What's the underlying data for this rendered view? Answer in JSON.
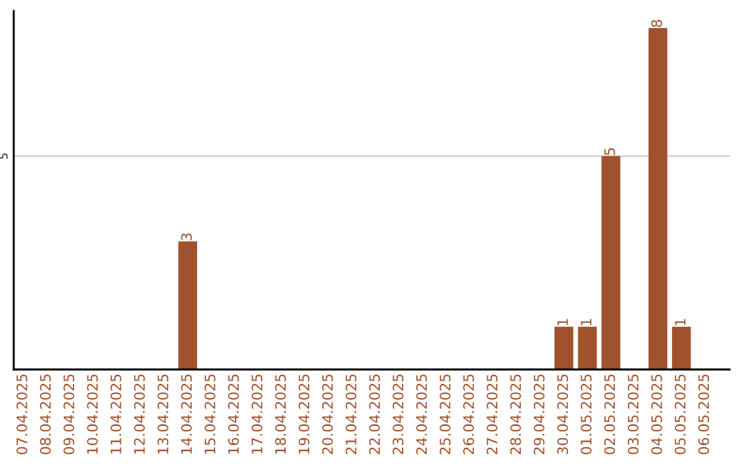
{
  "chart_data": {
    "type": "bar",
    "categories": [
      "07.04.2025",
      "08.04.2025",
      "09.04.2025",
      "10.04.2025",
      "11.04.2025",
      "12.04.2025",
      "13.04.2025",
      "14.04.2025",
      "15.04.2025",
      "16.04.2025",
      "17.04.2025",
      "18.04.2025",
      "19.04.2025",
      "20.04.2025",
      "21.04.2025",
      "22.04.2025",
      "23.04.2025",
      "24.04.2025",
      "25.04.2025",
      "26.04.2025",
      "27.04.2025",
      "28.04.2025",
      "29.04.2025",
      "30.04.2025",
      "01.05.2025",
      "02.05.2025",
      "03.05.2025",
      "04.05.2025",
      "05.05.2025",
      "06.05.2025"
    ],
    "values": [
      0,
      0,
      0,
      0,
      0,
      0,
      0,
      3,
      0,
      0,
      0,
      0,
      0,
      0,
      0,
      0,
      0,
      0,
      0,
      0,
      0,
      0,
      0,
      1,
      1,
      5,
      0,
      8,
      1,
      0
    ],
    "value_labels": [
      null,
      null,
      null,
      null,
      null,
      null,
      null,
      "3",
      null,
      null,
      null,
      null,
      null,
      null,
      null,
      null,
      null,
      null,
      null,
      null,
      null,
      null,
      null,
      "1",
      "1",
      "5",
      null,
      "8",
      "1",
      null
    ],
    "color": "#a0522d",
    "ylim": [
      0,
      8.4
    ],
    "yticks": [
      5
    ],
    "grid": "y",
    "legend": false
  }
}
